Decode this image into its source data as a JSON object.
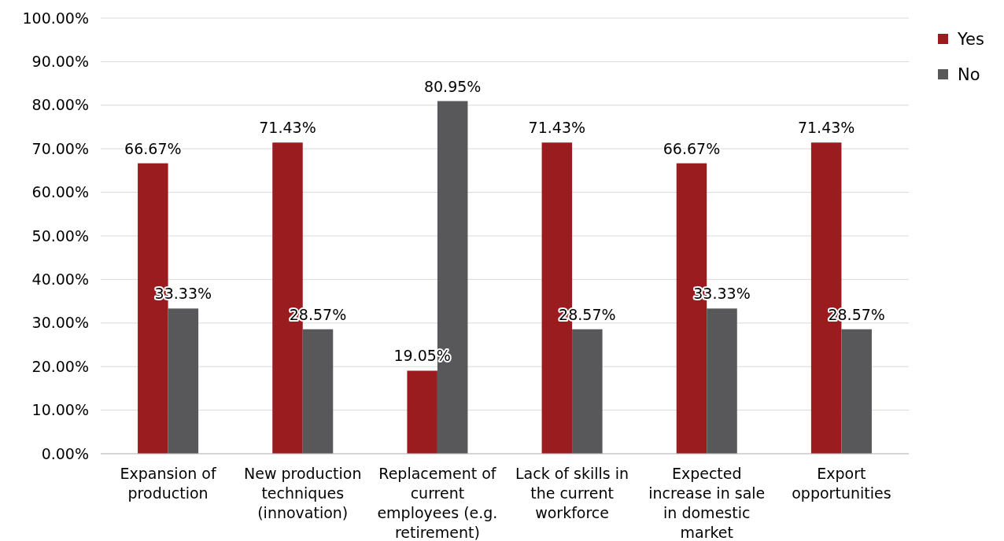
{
  "chart_data": {
    "type": "bar",
    "categories": [
      "Expansion of production",
      "New production techniques (innovation)",
      "Replacement of current employees (e.g. retirement)",
      "Lack of skills in the current workforce",
      "Expected increase in sale in domestic market",
      "Export opportunities"
    ],
    "series": [
      {
        "name": "Yes",
        "color": "#9b1c1f",
        "values": [
          66.67,
          71.43,
          19.05,
          71.43,
          66.67,
          71.43
        ],
        "value_labels": [
          "66.67%",
          "71.43%",
          "19.05%",
          "71.43%",
          "66.67%",
          "71.43%"
        ]
      },
      {
        "name": "No",
        "color": "#58585a",
        "values": [
          33.33,
          28.57,
          80.95,
          28.57,
          33.33,
          28.57
        ],
        "value_labels": [
          "33.33%",
          "28.57%",
          "80.95%",
          "28.57%",
          "33.33%",
          "28.57%"
        ]
      }
    ],
    "ylim": [
      0,
      100
    ],
    "yticks": [
      {
        "value": 0,
        "label": "0.00%"
      },
      {
        "value": 10,
        "label": "10.00%"
      },
      {
        "value": 20,
        "label": "20.00%"
      },
      {
        "value": 30,
        "label": "30.00%"
      },
      {
        "value": 40,
        "label": "40.00%"
      },
      {
        "value": 50,
        "label": "50.00%"
      },
      {
        "value": 60,
        "label": "60.00%"
      },
      {
        "value": 70,
        "label": "70.00%"
      },
      {
        "value": 80,
        "label": "80.00%"
      },
      {
        "value": 90,
        "label": "90.00%"
      },
      {
        "value": 100,
        "label": "100.00%"
      }
    ],
    "grid": "y",
    "legend": "right"
  }
}
